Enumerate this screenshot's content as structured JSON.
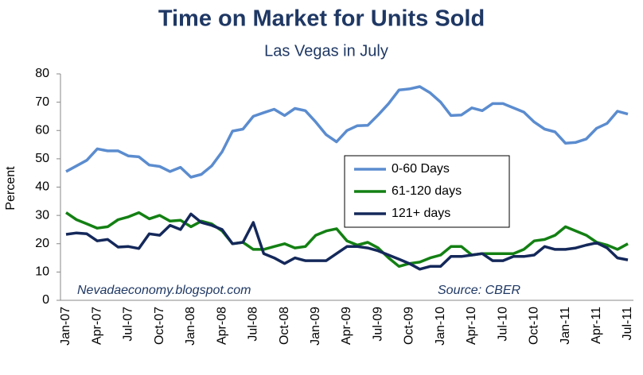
{
  "chart_data": {
    "type": "line",
    "title": "Time on Market for Units Sold",
    "subtitle": "Las Vegas in July",
    "y_label": "Percent",
    "annotations": [
      "Nevadaeconomy.blogspot.com",
      "Source: CBER"
    ],
    "categories": [
      "Jan-07",
      null,
      null,
      "Apr-07",
      null,
      null,
      "Jul-07",
      null,
      null,
      "Oct-07",
      null,
      null,
      "Jan-08",
      null,
      null,
      "Apr-08",
      null,
      null,
      "Jul-08",
      null,
      null,
      "Oct-08",
      null,
      null,
      "Jan-09",
      null,
      null,
      "Apr-09",
      null,
      null,
      "Jul-09",
      null,
      null,
      "Oct-09",
      null,
      null,
      "Jan-10",
      null,
      null,
      "Apr-10",
      null,
      null,
      "Jul-10",
      null,
      null,
      "Oct-10",
      null,
      null,
      "Jan-11",
      null,
      null,
      "Apr-11",
      null,
      null,
      "Jul-11"
    ],
    "series": [
      {
        "name": "0-60 Days",
        "color": "#5b8ccf",
        "values": [
          45.5,
          47.5,
          49.5,
          53.5,
          52.8,
          52.8,
          51,
          50.7,
          47.8,
          47.3,
          45.5,
          47,
          43.5,
          44.5,
          47.5,
          52.5,
          59.8,
          60.5,
          65,
          66.3,
          67.5,
          65.3,
          67.8,
          67,
          63,
          58.5,
          56,
          60,
          61.7,
          61.8,
          65.5,
          69.5,
          74.3,
          74.7,
          75.5,
          73.3,
          70,
          65.3,
          65.5,
          68,
          67,
          69.5,
          69.5,
          68,
          66.5,
          63,
          60.5,
          59.5,
          55.5,
          55.8,
          57,
          60.8,
          62.5,
          66.8,
          65.8
        ]
      },
      {
        "name": "61-120 days",
        "color": "#138013",
        "values": [
          31,
          28.5,
          27,
          25.5,
          26,
          28.5,
          29.5,
          31,
          28.8,
          30,
          28,
          28.3,
          26,
          28,
          27,
          24.5,
          20,
          20.5,
          18,
          18,
          19,
          20,
          18.5,
          19,
          23,
          24.5,
          25.3,
          21,
          19.5,
          20.5,
          18.5,
          15,
          12,
          13,
          13.5,
          15,
          16,
          19,
          19,
          16,
          16.5,
          16.5,
          16.5,
          16.5,
          18,
          21,
          21.5,
          23,
          26,
          24.5,
          23,
          20.5,
          19.5,
          18,
          20
        ]
      },
      {
        "name": "121+ days",
        "color": "#14285a",
        "values": [
          23.3,
          23.8,
          23.5,
          21,
          21.5,
          18.8,
          19,
          18.3,
          23.5,
          23,
          26.5,
          25,
          30.5,
          27.5,
          26.5,
          25,
          20,
          20.5,
          27.5,
          16.5,
          15,
          13,
          15,
          14,
          14,
          14,
          16.5,
          19,
          19,
          18.5,
          17.5,
          16,
          14.5,
          13,
          11,
          12,
          12,
          15.5,
          15.5,
          16,
          16.5,
          14,
          14,
          15.5,
          15.5,
          16,
          19,
          18,
          18,
          18.5,
          19.5,
          20.3,
          18.5,
          15,
          14.3
        ]
      }
    ],
    "ylim": [
      0,
      80
    ],
    "yticks": [
      0,
      10,
      20,
      30,
      40,
      50,
      60,
      70,
      80
    ]
  }
}
